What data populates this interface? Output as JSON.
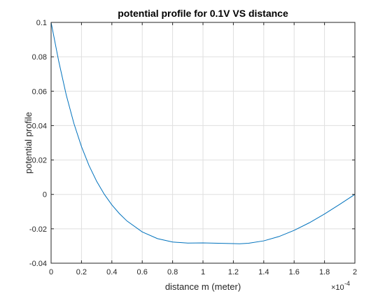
{
  "chart_data": {
    "type": "line",
    "title": "potential profile for 0.1V VS distance",
    "xlabel": "distance m (meter)",
    "ylabel": "potential profile",
    "x_exponent_label": "×10",
    "x_exponent_power": "-4",
    "xlim": [
      0,
      2
    ],
    "ylim": [
      -0.04,
      0.1
    ],
    "xticks": [
      0,
      0.2,
      0.4,
      0.6,
      0.8,
      1,
      1.2,
      1.4,
      1.6,
      1.8,
      2
    ],
    "xtick_labels": [
      "0",
      "0.2",
      "0.4",
      "0.6",
      "0.8",
      "1",
      "1.2",
      "1.4",
      "1.6",
      "1.8",
      "2"
    ],
    "yticks": [
      -0.04,
      -0.02,
      0,
      0.02,
      0.04,
      0.06,
      0.08,
      0.1
    ],
    "ytick_labels": [
      "-0.04",
      "-0.02",
      "0",
      "0.02",
      "0.04",
      "0.06",
      "0.08",
      "0.1"
    ],
    "grid": true,
    "series": [
      {
        "color": "#0072bd",
        "x": [
          0,
          0.05,
          0.1,
          0.15,
          0.2,
          0.25,
          0.3,
          0.35,
          0.4,
          0.45,
          0.5,
          0.6,
          0.7,
          0.8,
          0.9,
          1.0,
          1.1,
          1.2,
          1.24,
          1.3,
          1.4,
          1.5,
          1.6,
          1.7,
          1.8,
          1.9,
          2.0
        ],
        "y": [
          0.1,
          0.0775,
          0.0577,
          0.0413,
          0.0278,
          0.0167,
          0.0076,
          0.0001,
          -0.0061,
          -0.0112,
          -0.0155,
          -0.0218,
          -0.0257,
          -0.0277,
          -0.0283,
          -0.0282,
          -0.0284,
          -0.0286,
          -0.0287,
          -0.0284,
          -0.027,
          -0.0245,
          -0.0209,
          -0.0165,
          -0.0114,
          -0.0058,
          0.0
        ]
      }
    ]
  }
}
